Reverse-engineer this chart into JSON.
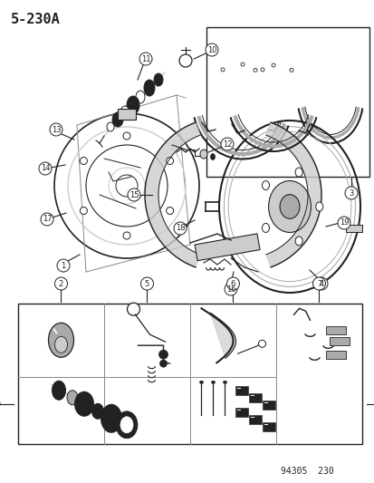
{
  "title": "5-230A",
  "bg_color": "#ffffff",
  "footer_text": "94305  230",
  "fig_width": 4.14,
  "fig_height": 5.33,
  "dpi": 100,
  "lc": "#222222",
  "gray": "#888888",
  "lgray": "#cccccc",
  "mgray": "#aaaaaa"
}
